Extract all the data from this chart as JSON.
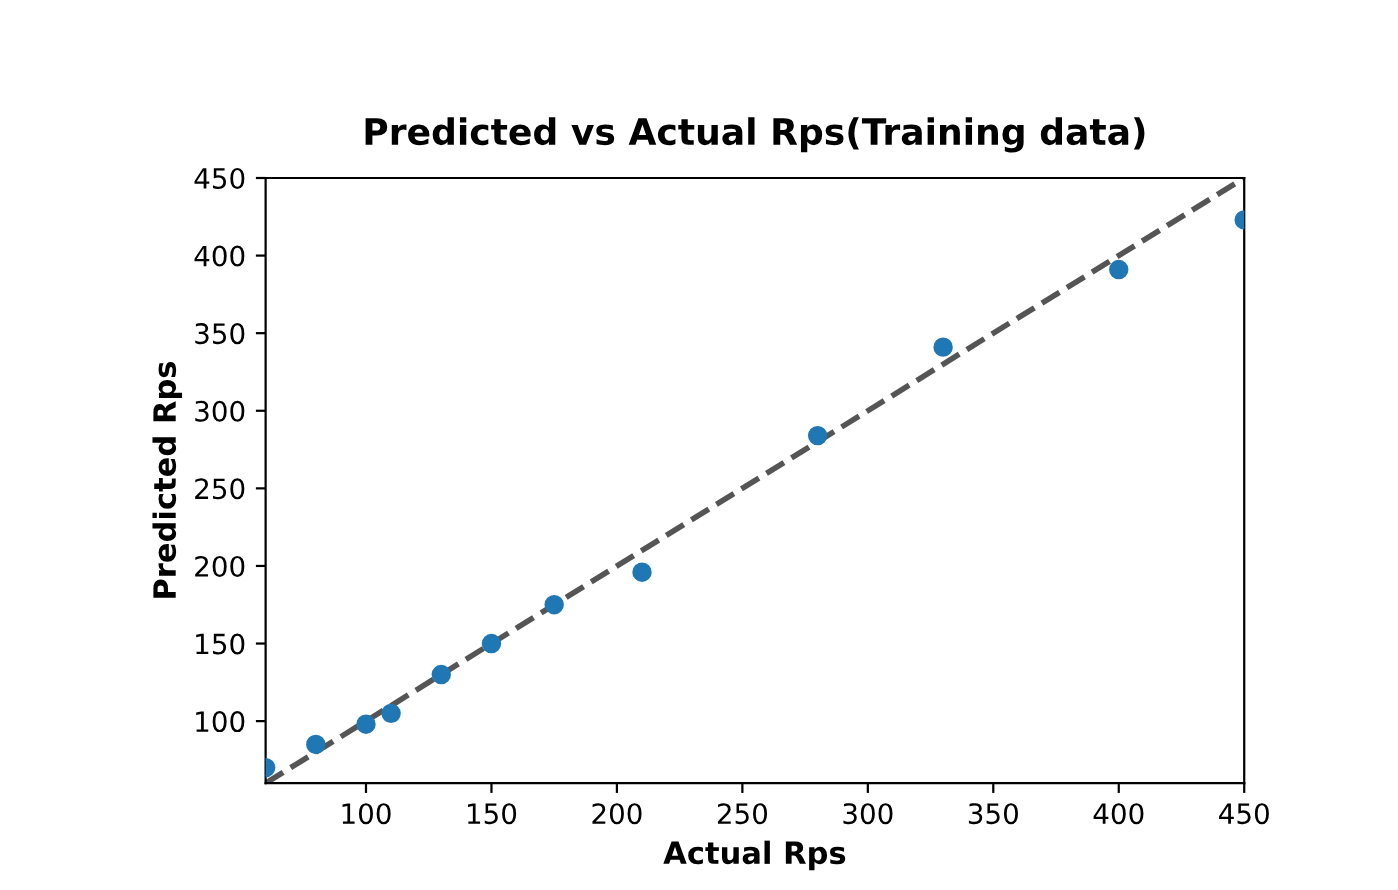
{
  "chart_data": {
    "type": "scatter",
    "title": "Predicted vs Actual Rps(Training data)",
    "xlabel": "Actual Rps",
    "ylabel": "Predicted Rps",
    "series": [
      {
        "color": "#1f77b4",
        "x": [
          60,
          80,
          100,
          110,
          130,
          150,
          175,
          210,
          280,
          330,
          400,
          450
        ],
        "values": [
          70,
          85,
          98,
          105,
          130,
          150,
          175,
          196,
          284,
          341,
          391,
          423
        ]
      },
      {
        "type": "line",
        "color": "#555555",
        "line_style": "dashed",
        "marker": "none",
        "x": [
          60,
          450
        ],
        "values": [
          60,
          450
        ]
      }
    ],
    "xlim": [
      60,
      450
    ],
    "ylim": [
      60,
      450
    ],
    "xticks": [
      100,
      150,
      200,
      250,
      300,
      350,
      400,
      450
    ],
    "yticks": [
      100,
      150,
      200,
      250,
      300,
      350,
      400,
      450
    ],
    "grid": false,
    "marker": "circle"
  }
}
